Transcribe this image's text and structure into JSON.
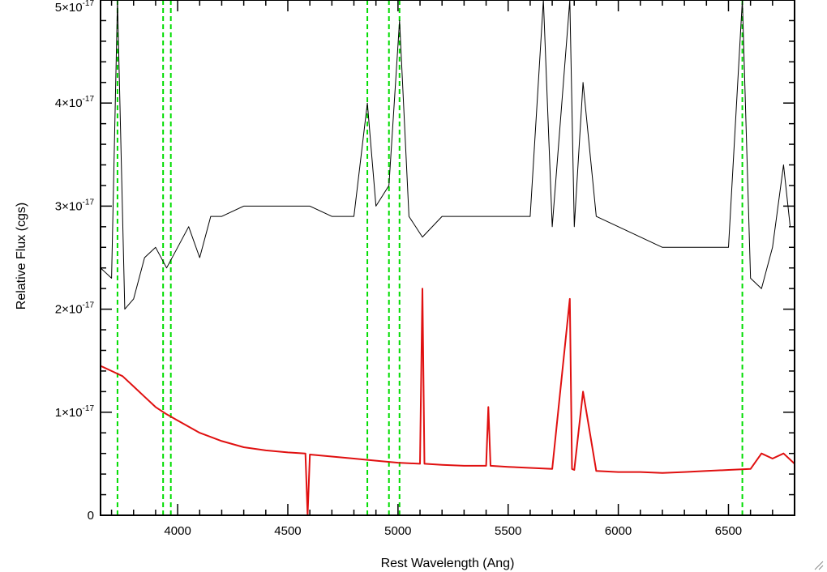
{
  "chart_data": {
    "type": "line",
    "title": "",
    "xlabel": "Rest Wavelength (Ang)",
    "ylabel": "Relative Flux (cgs)",
    "xlim": [
      3650,
      6800
    ],
    "ylim": [
      0,
      5e-17
    ],
    "x_ticks": [
      4000,
      4500,
      5000,
      5500,
      6000,
      6500
    ],
    "y_ticks": [
      {
        "value": 0,
        "label": "0"
      },
      {
        "value": 1e-17,
        "mantissa": "1×10",
        "exponent": "-17"
      },
      {
        "value": 2e-17,
        "mantissa": "2×10",
        "exponent": "-17"
      },
      {
        "value": 3e-17,
        "mantissa": "3×10",
        "exponent": "-17"
      },
      {
        "value": 4e-17,
        "mantissa": "4×10",
        "exponent": "-17"
      },
      {
        "value": 5e-17,
        "mantissa": "5×10",
        "exponent": "-17"
      }
    ],
    "grid": false,
    "series": [
      {
        "color": "#000000",
        "style": "solid",
        "x": [
          3650,
          3700,
          3727,
          3760,
          3800,
          3850,
          3900,
          3950,
          4000,
          4050,
          4100,
          4150,
          4200,
          4300,
          4400,
          4500,
          4580,
          4600,
          4700,
          4800,
          4861,
          4900,
          4959,
          5007,
          5050,
          5111,
          5200,
          5300,
          5400,
          5500,
          5600,
          5660,
          5700,
          5780,
          5800,
          5840,
          5900,
          6000,
          6100,
          6200,
          6300,
          6400,
          6500,
          6563,
          6600,
          6650,
          6700,
          6750,
          6780
        ],
        "values": [
          2.4e-17,
          2.3e-17,
          5e-17,
          2e-17,
          2.1e-17,
          2.5e-17,
          2.6e-17,
          2.4e-17,
          2.6e-17,
          2.8e-17,
          2.5e-17,
          2.9e-17,
          2.9e-17,
          3e-17,
          3e-17,
          3e-17,
          3e-17,
          3e-17,
          2.9e-17,
          2.9e-17,
          4e-17,
          3e-17,
          3.2e-17,
          4.8e-17,
          2.9e-17,
          2.7e-17,
          2.9e-17,
          2.9e-17,
          2.9e-17,
          2.9e-17,
          2.9e-17,
          5e-17,
          2.8e-17,
          5e-17,
          2.8e-17,
          4.2e-17,
          2.9e-17,
          2.8e-17,
          2.7e-17,
          2.6e-17,
          2.6e-17,
          2.6e-17,
          2.6e-17,
          5e-17,
          2.3e-17,
          2.2e-17,
          2.6e-17,
          3.4e-17,
          2.8e-17
        ]
      },
      {
        "color": "#e01010",
        "style": "solid",
        "x": [
          3650,
          3700,
          3750,
          3800,
          3850,
          3900,
          3950,
          4000,
          4100,
          4200,
          4300,
          4400,
          4500,
          4580,
          4590,
          4600,
          4700,
          4800,
          4900,
          5000,
          5100,
          5111,
          5120,
          5200,
          5300,
          5400,
          5410,
          5420,
          5500,
          5600,
          5700,
          5780,
          5790,
          5800,
          5840,
          5900,
          6000,
          6100,
          6200,
          6300,
          6400,
          6500,
          6600,
          6650,
          6700,
          6750,
          6800
        ],
        "values": [
          1.45e-17,
          1.4e-17,
          1.35e-17,
          1.25e-17,
          1.15e-17,
          1.05e-17,
          9.8e-18,
          9.2e-18,
          8e-18,
          7.2e-18,
          6.6e-18,
          6.3e-18,
          6.1e-18,
          6e-18,
          0.0,
          5.9e-18,
          5.7e-18,
          5.5e-18,
          5.3e-18,
          5.1e-18,
          5e-18,
          2.2e-17,
          5e-18,
          4.9e-18,
          4.8e-18,
          4.8e-18,
          1.05e-17,
          4.8e-18,
          4.7e-18,
          4.6e-18,
          4.5e-18,
          2.1e-17,
          4.5e-18,
          4.4e-18,
          1.2e-17,
          4.3e-18,
          4.2e-18,
          4.2e-18,
          4.1e-18,
          4.2e-18,
          4.3e-18,
          4.4e-18,
          4.5e-18,
          6e-18,
          5.5e-18,
          6e-18,
          5e-18
        ]
      }
    ],
    "vlines": [
      {
        "x": 3727,
        "color": "#00dd00",
        "style": "dashed"
      },
      {
        "x": 3934,
        "color": "#00dd00",
        "style": "dashed"
      },
      {
        "x": 3969,
        "color": "#00dd00",
        "style": "dashed"
      },
      {
        "x": 4861,
        "color": "#00dd00",
        "style": "dashed"
      },
      {
        "x": 4959,
        "color": "#00dd00",
        "style": "dashed"
      },
      {
        "x": 5007,
        "color": "#00dd00",
        "style": "dashed"
      },
      {
        "x": 6563,
        "color": "#00dd00",
        "style": "dashed"
      }
    ]
  }
}
